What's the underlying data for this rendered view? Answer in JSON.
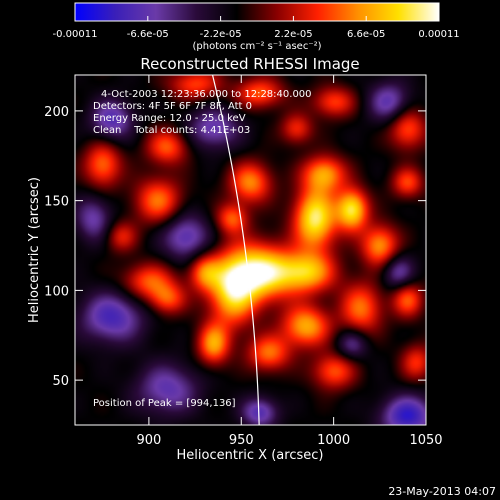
{
  "colorbar": {
    "tick_labels": [
      "-0.00011",
      "-6.6e-05",
      "-2.2e-05",
      "2.2e-05",
      "6.6e-05",
      "0.00011"
    ],
    "tick_values": [
      -0.00011,
      -6.6e-05,
      -2.2e-05,
      2.2e-05,
      6.6e-05,
      0.00011
    ],
    "range": [
      -0.00011,
      0.00011
    ],
    "units_label": "(photons cm⁻² s⁻¹ asec⁻²)",
    "colors": [
      "#0000ff",
      "#3a1fb8",
      "#6a3aa8",
      "#2a0a3a",
      "#000000",
      "#8a0000",
      "#ff2000",
      "#ff9000",
      "#ffe000",
      "#ffffff"
    ]
  },
  "chart_data": {
    "type": "heatmap",
    "title": "Reconstructed RHESSI Image",
    "xlabel": "Heliocentric X (arcsec)",
    "ylabel": "Heliocentric Y (arcsec)",
    "xlim": [
      860,
      1050
    ],
    "ylim": [
      25,
      220
    ],
    "x_ticks": [
      900,
      950,
      1000,
      1050
    ],
    "y_ticks": [
      50,
      100,
      150,
      200
    ],
    "annotations": [
      "4-Oct-2003 12:23:36.000 to 12:28:40.000",
      "Detectors: 4F 5F 6F 7F 8F, Att 0",
      "Energy Range: 12.0 - 25.0 keV",
      "Clean    Total counts: 4.41E+03"
    ],
    "peak_label": "Position of Peak = [994,136]",
    "peak_position": [
      994,
      136
    ],
    "limb_arcsec": 960,
    "blobs": [
      {
        "x": 990,
        "y": 140,
        "amp": 1.0,
        "w": 8,
        "h": 12
      },
      {
        "x": 960,
        "y": 110,
        "amp": 1.0,
        "w": 12,
        "h": 11
      },
      {
        "x": 945,
        "y": 100,
        "amp": 0.85,
        "w": 9,
        "h": 14
      },
      {
        "x": 985,
        "y": 110,
        "amp": 0.8,
        "w": 11,
        "h": 8
      },
      {
        "x": 1010,
        "y": 145,
        "amp": 0.95,
        "w": 6,
        "h": 8
      },
      {
        "x": 995,
        "y": 165,
        "amp": 0.7,
        "w": 8,
        "h": 7
      },
      {
        "x": 955,
        "y": 160,
        "amp": 0.65,
        "w": 8,
        "h": 8
      },
      {
        "x": 1025,
        "y": 125,
        "amp": 0.7,
        "w": 7,
        "h": 8
      },
      {
        "x": 1015,
        "y": 90,
        "amp": 0.6,
        "w": 8,
        "h": 10
      },
      {
        "x": 985,
        "y": 80,
        "amp": 0.75,
        "w": 9,
        "h": 8
      },
      {
        "x": 965,
        "y": 65,
        "amp": 0.6,
        "w": 8,
        "h": 7
      },
      {
        "x": 935,
        "y": 70,
        "amp": 0.7,
        "w": 6,
        "h": 8
      },
      {
        "x": 930,
        "y": 110,
        "amp": 0.55,
        "w": 6,
        "h": 7
      },
      {
        "x": 905,
        "y": 150,
        "amp": 0.6,
        "w": 9,
        "h": 9
      },
      {
        "x": 875,
        "y": 170,
        "amp": 0.6,
        "w": 7,
        "h": 9
      },
      {
        "x": 900,
        "y": 105,
        "amp": 0.55,
        "w": 10,
        "h": 7
      },
      {
        "x": 910,
        "y": 95,
        "amp": 0.5,
        "w": 7,
        "h": 6
      },
      {
        "x": 885,
        "y": 130,
        "amp": 0.4,
        "w": 6,
        "h": 6
      },
      {
        "x": 1040,
        "y": 95,
        "amp": 0.55,
        "w": 6,
        "h": 7
      },
      {
        "x": 1000,
        "y": 55,
        "amp": 0.55,
        "w": 8,
        "h": 7
      },
      {
        "x": 910,
        "y": 180,
        "amp": 0.55,
        "w": 8,
        "h": 7
      },
      {
        "x": 925,
        "y": 215,
        "amp": 0.5,
        "w": 10,
        "h": 6
      },
      {
        "x": 960,
        "y": 210,
        "amp": 0.55,
        "w": 9,
        "h": 6
      },
      {
        "x": 1000,
        "y": 205,
        "amp": 0.5,
        "w": 8,
        "h": 6
      },
      {
        "x": 1040,
        "y": 190,
        "amp": 0.55,
        "w": 7,
        "h": 8
      },
      {
        "x": 1040,
        "y": 160,
        "amp": 0.5,
        "w": 6,
        "h": 6
      },
      {
        "x": 1045,
        "y": 60,
        "amp": 0.45,
        "w": 6,
        "h": 7
      },
      {
        "x": 945,
        "y": 140,
        "amp": 0.55,
        "w": 6,
        "h": 6
      },
      {
        "x": 980,
        "y": 190,
        "amp": 0.45,
        "w": 6,
        "h": 6
      },
      {
        "x": 880,
        "y": 195,
        "amp": -0.55,
        "w": 8,
        "h": 8
      },
      {
        "x": 880,
        "y": 85,
        "amp": -0.6,
        "w": 12,
        "h": 10
      },
      {
        "x": 920,
        "y": 130,
        "amp": -0.55,
        "w": 9,
        "h": 9
      },
      {
        "x": 935,
        "y": 190,
        "amp": -0.5,
        "w": 10,
        "h": 8
      },
      {
        "x": 1030,
        "y": 205,
        "amp": -0.5,
        "w": 8,
        "h": 8
      },
      {
        "x": 910,
        "y": 45,
        "amp": -0.5,
        "w": 12,
        "h": 10
      },
      {
        "x": 1040,
        "y": 30,
        "amp": -0.7,
        "w": 10,
        "h": 8
      },
      {
        "x": 960,
        "y": 32,
        "amp": -0.55,
        "w": 7,
        "h": 6
      },
      {
        "x": 1035,
        "y": 110,
        "amp": -0.45,
        "w": 6,
        "h": 7
      },
      {
        "x": 870,
        "y": 140,
        "amp": -0.45,
        "w": 7,
        "h": 9
      },
      {
        "x": 1010,
        "y": 70,
        "amp": -0.4,
        "w": 6,
        "h": 6
      }
    ]
  },
  "footer": {
    "timestamp": "23-May-2013 04:07"
  }
}
